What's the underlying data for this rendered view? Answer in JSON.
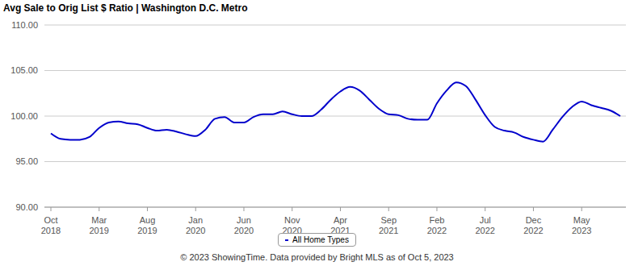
{
  "chart_data": {
    "type": "line",
    "title": "Avg Sale to Orig List $ Ratio | Washington D.C. Metro",
    "annotations": [
      "© 2023 ShowingTime. Data provided by Bright MLS as of Oct 5, 2023"
    ],
    "categories": [
      "Oct 2018",
      null,
      null,
      null,
      null,
      "Mar 2019",
      null,
      null,
      null,
      null,
      "Aug 2019",
      null,
      null,
      null,
      null,
      "Jan 2020",
      null,
      null,
      null,
      null,
      "Jun 2020",
      null,
      null,
      null,
      null,
      "Nov 2020",
      null,
      null,
      null,
      null,
      "Apr 2021",
      null,
      null,
      null,
      null,
      "Sep 2021",
      null,
      null,
      null,
      null,
      "Feb 2022",
      null,
      null,
      null,
      null,
      "Jul 2022",
      null,
      null,
      null,
      null,
      "Dec 2022",
      null,
      null,
      null,
      null,
      "May 2023",
      null,
      null,
      null,
      null
    ],
    "series": [
      {
        "name": "All Home Types",
        "color": "#0000cc",
        "values": [
          98.1,
          97.5,
          97.4,
          97.4,
          97.7,
          98.7,
          99.3,
          99.4,
          99.2,
          99.1,
          98.7,
          98.4,
          98.5,
          98.3,
          98.0,
          97.8,
          98.5,
          99.7,
          99.9,
          99.3,
          99.3,
          99.9,
          100.2,
          100.2,
          100.5,
          100.2,
          100.0,
          100.0,
          100.7,
          101.8,
          102.7,
          103.2,
          102.8,
          101.8,
          100.8,
          100.2,
          100.1,
          99.7,
          99.6,
          99.6,
          101.4,
          102.8,
          103.7,
          103.3,
          101.8,
          100.1,
          98.8,
          98.4,
          98.2,
          97.7,
          97.4,
          97.2,
          98.5,
          99.9,
          101.0,
          101.6,
          101.2,
          100.9,
          100.6,
          100.0
        ]
      }
    ],
    "ylim": [
      90,
      110
    ],
    "yticks": [
      {
        "value": 90,
        "label": "90.00"
      },
      {
        "value": 95,
        "label": "95.00"
      },
      {
        "value": 100,
        "label": "100.00"
      },
      {
        "value": 105,
        "label": "105.00"
      },
      {
        "value": 110,
        "label": "110.00"
      }
    ],
    "grid": true,
    "legend": "bottom"
  }
}
